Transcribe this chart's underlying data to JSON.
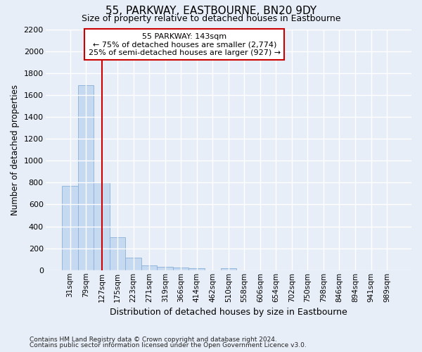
{
  "title": "55, PARKWAY, EASTBOURNE, BN20 9DY",
  "subtitle": "Size of property relative to detached houses in Eastbourne",
  "xlabel": "Distribution of detached houses by size in Eastbourne",
  "ylabel": "Number of detached properties",
  "footnote1": "Contains HM Land Registry data © Crown copyright and database right 2024.",
  "footnote2": "Contains public sector information licensed under the Open Government Licence v3.0.",
  "bar_labels": [
    "31sqm",
    "79sqm",
    "127sqm",
    "175sqm",
    "223sqm",
    "271sqm",
    "319sqm",
    "366sqm",
    "414sqm",
    "462sqm",
    "510sqm",
    "558sqm",
    "606sqm",
    "654sqm",
    "702sqm",
    "750sqm",
    "798sqm",
    "846sqm",
    "894sqm",
    "941sqm",
    "989sqm"
  ],
  "bar_values": [
    770,
    1690,
    800,
    300,
    115,
    43,
    30,
    22,
    20,
    0,
    20,
    0,
    0,
    0,
    0,
    0,
    0,
    0,
    0,
    0,
    0
  ],
  "bar_color": "#c5d9f0",
  "bar_edge_color": "#8ab0d8",
  "ylim_max": 2200,
  "ytick_step": 200,
  "annotation_line1": "55 PARKWAY: 143sqm",
  "annotation_line2": "← 75% of detached houses are smaller (2,774)",
  "annotation_line3": "25% of semi-detached houses are larger (927) →",
  "annotation_box_facecolor": "#ffffff",
  "annotation_box_edgecolor": "#cc0000",
  "vline_color": "#cc0000",
  "vline_x": 2.0,
  "bg_color": "#e8eef8",
  "grid_color": "#ffffff"
}
